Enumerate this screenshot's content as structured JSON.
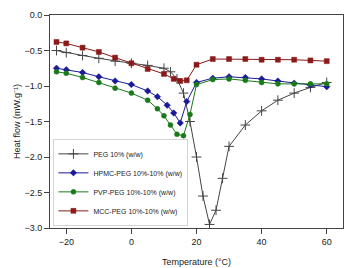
{
  "chart_data": {
    "type": "line",
    "xlabel": "Temperature (°C)",
    "ylabel": "Heat flow (mW.g⁻¹)",
    "xlim": [
      -25,
      65
    ],
    "ylim": [
      -3.0,
      0.0
    ],
    "xticks": [
      -20,
      0,
      20,
      40,
      60
    ],
    "yticks": [
      {
        "value": 0.0,
        "label": "0.0"
      },
      {
        "value": -0.5,
        "label": "−0.5"
      },
      {
        "value": -1.0,
        "label": "−1.0"
      },
      {
        "value": -1.5,
        "label": "−1.5"
      },
      {
        "value": -2.0,
        "label": "−2.0"
      },
      {
        "value": -2.5,
        "label": "−2.5"
      },
      {
        "value": -3.0,
        "label": "−3.0"
      }
    ],
    "grid": false,
    "legend": "lower left",
    "series": [
      {
        "name": "PEG 10% (w/w)",
        "color": "#444444",
        "marker": "plus",
        "x": [
          -23,
          -20,
          -15,
          -10,
          -5,
          0,
          5,
          10,
          12,
          14,
          16,
          18,
          20,
          22,
          24,
          26,
          28,
          30,
          35,
          40,
          45,
          50,
          55,
          60
        ],
        "values": [
          -0.5,
          -0.53,
          -0.57,
          -0.61,
          -0.65,
          -0.68,
          -0.71,
          -0.75,
          -0.8,
          -0.9,
          -1.1,
          -1.5,
          -2.0,
          -2.55,
          -2.95,
          -2.75,
          -2.3,
          -1.85,
          -1.55,
          -1.35,
          -1.2,
          -1.1,
          -1.02,
          -0.95
        ]
      },
      {
        "name": "HPMC-PEG 10%-10% (w/w)",
        "color": "#1a1a99",
        "marker": "diamond",
        "x": [
          -23,
          -20,
          -15,
          -10,
          -5,
          0,
          5,
          8,
          11,
          13,
          15,
          17,
          20,
          25,
          30,
          35,
          40,
          45,
          50,
          55,
          60
        ],
        "values": [
          -0.75,
          -0.77,
          -0.81,
          -0.87,
          -0.93,
          -0.98,
          -1.07,
          -1.15,
          -1.27,
          -1.38,
          -1.52,
          -1.22,
          -0.95,
          -0.89,
          -0.87,
          -0.88,
          -0.9,
          -0.93,
          -0.96,
          -0.99,
          -1.01
        ]
      },
      {
        "name": "PVP-PEG 10%-10% (w/w)",
        "color": "#1a7a1a",
        "marker": "circle",
        "x": [
          -23,
          -20,
          -15,
          -10,
          -5,
          0,
          5,
          8,
          10,
          12,
          14,
          16,
          18,
          20,
          25,
          30,
          35,
          40,
          45,
          50,
          55,
          60
        ],
        "values": [
          -0.8,
          -0.82,
          -0.88,
          -0.95,
          -1.03,
          -1.1,
          -1.2,
          -1.32,
          -1.42,
          -1.55,
          -1.68,
          -1.7,
          -1.4,
          -0.98,
          -0.91,
          -0.9,
          -0.92,
          -0.95,
          -0.97,
          -0.97,
          -0.97,
          -0.97
        ]
      },
      {
        "name": "MCC-PEG 10%-10% (w/w)",
        "color": "#8b1a1a",
        "marker": "square",
        "x": [
          -23,
          -20,
          -15,
          -10,
          -5,
          0,
          5,
          10,
          13,
          15,
          17,
          20,
          25,
          30,
          35,
          40,
          45,
          50,
          55,
          60
        ],
        "values": [
          -0.38,
          -0.4,
          -0.46,
          -0.52,
          -0.6,
          -0.68,
          -0.76,
          -0.83,
          -0.9,
          -0.93,
          -0.92,
          -0.7,
          -0.62,
          -0.62,
          -0.62,
          -0.63,
          -0.63,
          -0.63,
          -0.64,
          -0.65
        ]
      }
    ]
  }
}
